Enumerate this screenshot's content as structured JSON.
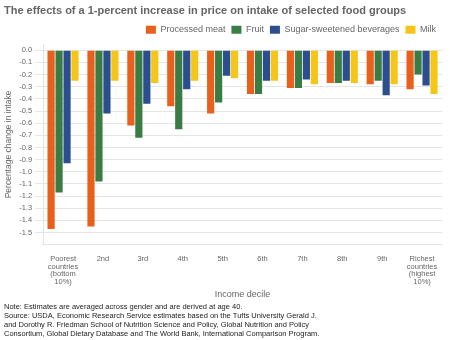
{
  "chart_data": {
    "type": "bar",
    "title": "The effects of a 1-percent increase in price on intake of selected food groups",
    "ylabel": "Percentage change in intake",
    "xlabel": "Income decile",
    "categories": [
      "Poorest\ncountries\n(bottom\n10%)",
      "2nd",
      "3rd",
      "4th",
      "5th",
      "6th",
      "7th",
      "8th",
      "9th",
      "Richest\ncountries\n(highest\n10%)"
    ],
    "series": [
      {
        "name": "Processed meat",
        "color": "#E8601C",
        "values": [
          -1.47,
          -1.45,
          -0.62,
          -0.46,
          -0.52,
          -0.36,
          -0.31,
          -0.27,
          -0.28,
          -0.32
        ]
      },
      {
        "name": "Fruit",
        "color": "#3A7D44",
        "values": [
          -1.17,
          -1.08,
          -0.72,
          -0.65,
          -0.43,
          -0.36,
          -0.31,
          -0.27,
          -0.25,
          -0.2
        ]
      },
      {
        "name": "Sugar-sweetened beverages",
        "color": "#2B4F8E",
        "values": [
          -0.93,
          -0.52,
          -0.44,
          -0.32,
          -0.21,
          -0.25,
          -0.24,
          -0.25,
          -0.37,
          -0.29
        ]
      },
      {
        "name": "Milk",
        "color": "#F5C518",
        "values": [
          -0.25,
          -0.25,
          -0.27,
          -0.25,
          -0.23,
          -0.25,
          -0.28,
          -0.27,
          -0.28,
          -0.36
        ]
      }
    ],
    "ylim": [
      -1.6,
      0.05
    ],
    "yticks": [
      -1.5,
      -1.4,
      -1.3,
      -1.2,
      -1.1,
      {
        "value": -1.0,
        "label": "-1.0"
      },
      -0.9,
      -0.8,
      -0.7,
      -0.6,
      -0.5,
      -0.4,
      -0.3,
      -0.2,
      -0.1,
      {
        "value": 0.0,
        "label": "0.0"
      }
    ],
    "grid": true,
    "legend": "upper right",
    "note": "Note: Estimates are averaged across gender and are derived at age 40.\nSource: USDA, Economic Research Service estimates based on the Tufts University Gerald J.\nand Dorothy R. Friedman School of Nutrition Science and Policy, Global Nutrition and Policy\nConsortium, Global Dietary Database and The World Bank, International Comparison Program."
  }
}
